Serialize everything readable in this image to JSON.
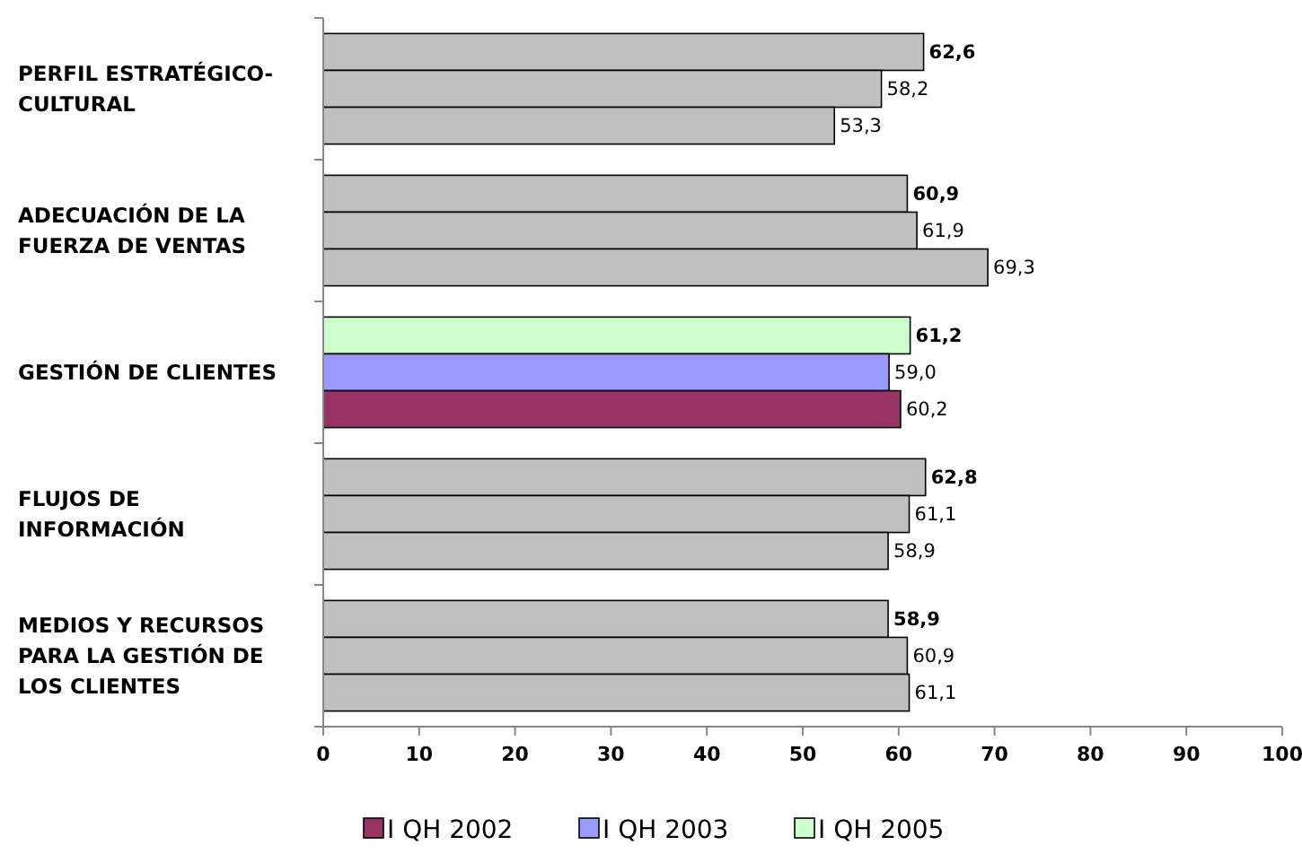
{
  "chart_data": {
    "type": "bar",
    "orientation": "horizontal",
    "categories": [
      "PERFIL ESTRATÉGICO-CULTURAL",
      "ADECUACIÓN DE LA FUERZA DE VENTAS",
      "GESTIÓN DE CLIENTES",
      "FLUJOS DE INFORMACIÓN",
      "MEDIOS Y RECURSOS PARA LA GESTIÓN DE LOS CLIENTES"
    ],
    "series": [
      {
        "name": "I QH 2005",
        "color": "#ccffcc",
        "colors": [
          "#c0c0c0",
          "#c0c0c0",
          "#ccffcc",
          "#c0c0c0",
          "#c0c0c0"
        ],
        "values": [
          62.6,
          60.9,
          61.2,
          62.8,
          58.9
        ],
        "value_labels": [
          "62,6",
          "60,9",
          "61,2",
          "62,8",
          "58,9"
        ]
      },
      {
        "name": "I QH 2003",
        "color": "#9999ff",
        "colors": [
          "#c0c0c0",
          "#c0c0c0",
          "#9999ff",
          "#c0c0c0",
          "#c0c0c0"
        ],
        "values": [
          58.2,
          61.9,
          59.0,
          61.1,
          60.9
        ],
        "value_labels": [
          "58,2",
          "61,9",
          "59,0",
          "61,1",
          "60,9"
        ]
      },
      {
        "name": "I QH 2002",
        "color": "#993366",
        "colors": [
          "#c0c0c0",
          "#c0c0c0",
          "#993366",
          "#c0c0c0",
          "#c0c0c0"
        ],
        "values": [
          53.3,
          69.3,
          60.2,
          58.9,
          61.1
        ],
        "value_labels": [
          "53,3",
          "69,3",
          "60,2",
          "58,9",
          "61,1"
        ]
      }
    ],
    "xlim": [
      0,
      100
    ],
    "xticks": [
      0,
      10,
      20,
      30,
      40,
      50,
      60,
      70,
      80,
      90,
      100
    ],
    "grid": false,
    "legend": "bottom"
  }
}
